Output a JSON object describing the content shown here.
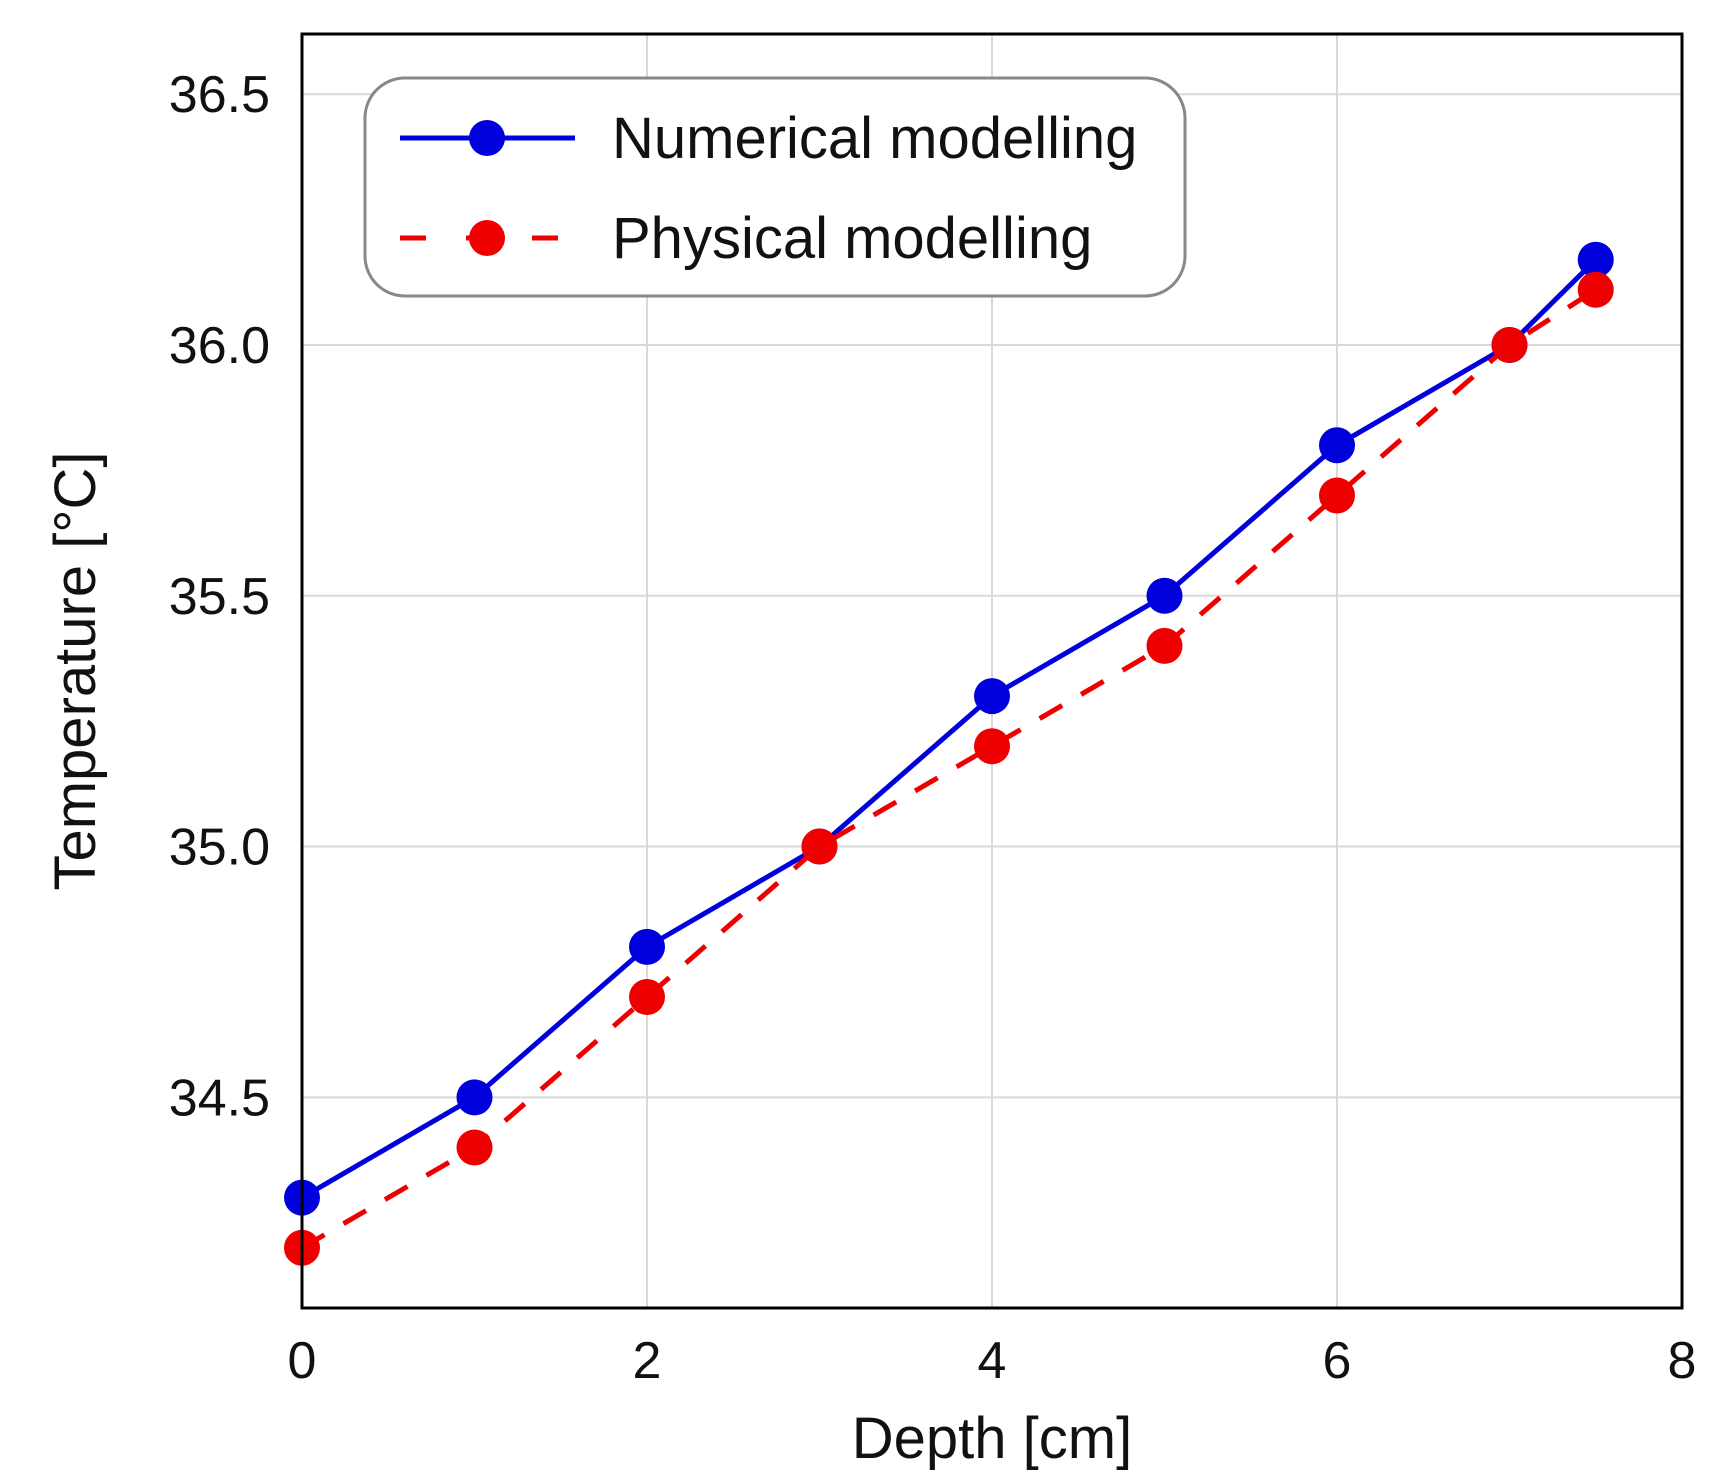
{
  "chart_data": {
    "type": "line",
    "title": "",
    "xlabel": "Depth [cm]",
    "ylabel": "Temperature [°C]",
    "xlim": [
      0,
      8
    ],
    "ylim": [
      34.08,
      36.62
    ],
    "xticks": [
      0,
      2,
      4,
      6,
      8
    ],
    "xtick_labels": [
      "0",
      "2",
      "4",
      "6",
      "8"
    ],
    "yticks": [
      34.5,
      35.0,
      35.5,
      36.0,
      36.5
    ],
    "ytick_labels": [
      "34.5",
      "35.0",
      "35.5",
      "36.0",
      "36.5"
    ],
    "grid": true,
    "legend_position": "top-left",
    "series": [
      {
        "name": "Numerical modelling",
        "color": "#0000dd",
        "line_style": "solid",
        "marker": "circle",
        "x": [
          0,
          1,
          2,
          3,
          4,
          5,
          6,
          7,
          7.5
        ],
        "y": [
          34.3,
          34.5,
          34.8,
          35.0,
          35.3,
          35.5,
          35.8,
          36.0,
          36.17
        ]
      },
      {
        "name": "Physical modelling",
        "color": "#ee0000",
        "line_style": "dashed",
        "marker": "circle",
        "x": [
          0,
          1,
          2,
          3,
          4,
          5,
          6,
          7,
          7.5
        ],
        "y": [
          34.2,
          34.4,
          34.7,
          35.0,
          35.2,
          35.4,
          35.7,
          36.0,
          36.11
        ]
      }
    ]
  }
}
